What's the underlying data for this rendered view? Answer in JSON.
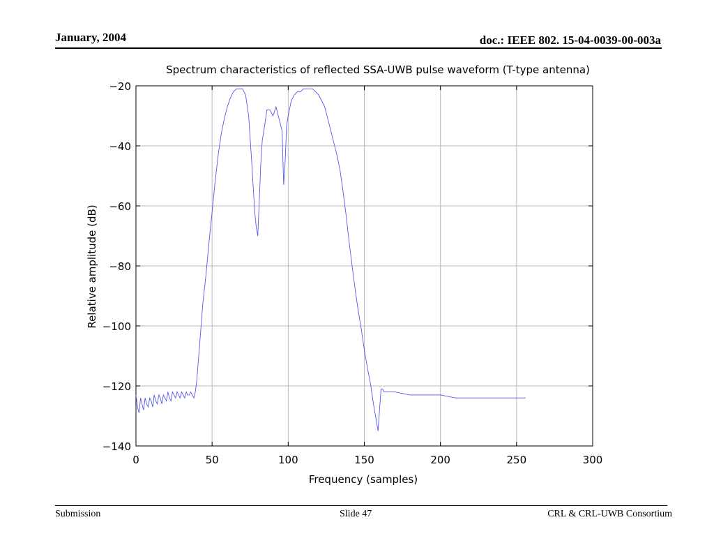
{
  "slide": {
    "date": "January, 2004",
    "doc_id": "doc.: IEEE 802. 15-04-0039-00-003a",
    "footer_left": "Submission",
    "footer_center": "Slide 47",
    "footer_right": "CRL & CRL-UWB Consortium"
  },
  "chart_data": {
    "type": "line",
    "title": "Spectrum characteristics of reflected SSA-UWB pulse waveform (T-type antenna)",
    "xlabel": "Frequency (samples)",
    "ylabel": "Relative amplitude (dB)",
    "xlim": [
      0,
      300
    ],
    "ylim": [
      -140,
      -20
    ],
    "xticks": [
      0,
      50,
      100,
      150,
      200,
      250,
      300
    ],
    "yticks": [
      -20,
      -40,
      -60,
      -80,
      -100,
      -120,
      -140
    ],
    "grid": true,
    "series": [
      {
        "color": "#5555ee",
        "x": [
          0,
          1,
          2,
          3,
          4,
          5,
          6,
          7,
          8,
          9,
          10,
          11,
          12,
          13,
          14,
          15,
          16,
          17,
          18,
          19,
          20,
          21,
          22,
          23,
          24,
          25,
          26,
          27,
          28,
          29,
          30,
          31,
          32,
          33,
          34,
          35,
          36,
          37,
          38,
          39,
          40,
          42,
          44,
          46,
          48,
          50,
          52,
          54,
          56,
          58,
          60,
          62,
          64,
          66,
          68,
          70,
          72,
          74,
          76,
          78,
          79,
          80,
          81,
          82,
          83,
          84,
          86,
          88,
          90,
          92,
          94,
          96,
          97,
          98,
          99,
          100,
          102,
          104,
          106,
          108,
          110,
          112,
          114,
          116,
          118,
          120,
          122,
          124,
          126,
          128,
          130,
          132,
          134,
          136,
          138,
          140,
          142,
          144,
          146,
          148,
          150,
          152,
          154,
          156,
          158,
          159,
          160,
          161,
          162,
          163,
          165,
          170,
          180,
          190,
          200,
          210,
          220,
          230,
          240,
          250,
          256
        ],
        "y": [
          -123,
          -127,
          -129,
          -124,
          -126,
          -128,
          -124,
          -126,
          -127,
          -124,
          -125,
          -127,
          -123,
          -125,
          -126,
          -123,
          -124,
          -126,
          -123,
          -124,
          -125,
          -122,
          -124,
          -125,
          -122,
          -123,
          -124,
          -122,
          -123,
          -124,
          -122,
          -123,
          -124,
          -122,
          -123,
          -123,
          -122,
          -123,
          -124,
          -122,
          -118,
          -105,
          -92,
          -83,
          -72,
          -62,
          -52,
          -43,
          -36,
          -31,
          -27,
          -24,
          -22,
          -21,
          -21,
          -21,
          -23,
          -30,
          -45,
          -62,
          -67,
          -70,
          -58,
          -46,
          -38,
          -35,
          -28,
          -28,
          -30,
          -27,
          -31,
          -35,
          -53,
          -45,
          -33,
          -30,
          -25,
          -23,
          -22,
          -22,
          -21,
          -21,
          -21,
          -21,
          -22,
          -23,
          -25,
          -27,
          -31,
          -35,
          -39,
          -43,
          -48,
          -55,
          -63,
          -72,
          -80,
          -88,
          -95,
          -101,
          -108,
          -114,
          -119,
          -126,
          -132,
          -135,
          -128,
          -121,
          -121,
          -122,
          -122,
          -122,
          -123,
          -123,
          -123,
          -124,
          -124,
          -124,
          -124,
          -124,
          -124
        ]
      }
    ]
  }
}
